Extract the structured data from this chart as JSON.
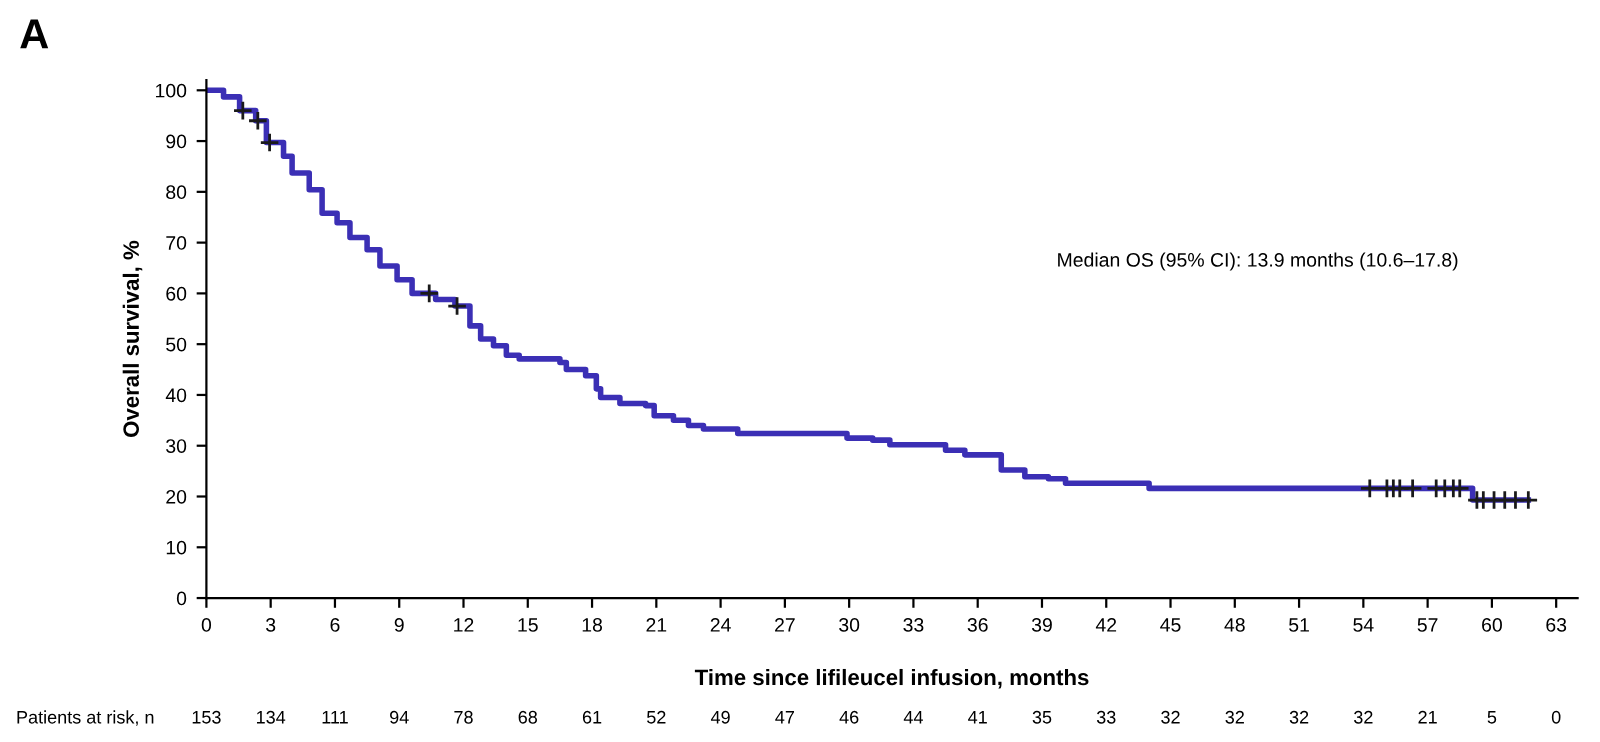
{
  "chart_data": {
    "type": "step",
    "title": "A",
    "xlabel": "Time since lifileucel infusion, months",
    "ylabel": "Overall survival, %",
    "xlim": [
      0,
      64
    ],
    "xticks": [
      0,
      3,
      6,
      9,
      12,
      15,
      18,
      21,
      24,
      27,
      30,
      33,
      36,
      39,
      42,
      45,
      48,
      51,
      54,
      57,
      60,
      63
    ],
    "ylim": [
      0,
      102
    ],
    "yticks": [
      0,
      10,
      20,
      30,
      40,
      50,
      60,
      70,
      80,
      90,
      100
    ],
    "grid": false,
    "legend": false,
    "annotations": [
      "Median OS (95% CI): 13.9 months (10.6–17.8)",
      "Patients at risk, n",
      "153",
      "134",
      "111",
      "94",
      "78",
      "68",
      "61",
      "52",
      "49",
      "47",
      "46",
      "44",
      "41",
      "35",
      "33",
      "32",
      "32",
      "32",
      "32",
      "21",
      "5",
      "0"
    ],
    "series": [
      {
        "color": "#3b2fb5",
        "marker": "none",
        "x": [
          0,
          0.8,
          1.55,
          2.3,
          2.8,
          3.6,
          4.0,
          4.8,
          5.4,
          6.1,
          6.7,
          7.5,
          8.1,
          8.9,
          9.6,
          10.7,
          11.6,
          12.3,
          12.8,
          13.4,
          14.0,
          14.6,
          16.5,
          16.8,
          17.7,
          18.2,
          18.4,
          19.3,
          20.5,
          20.9,
          21.8,
          22.5,
          23.2,
          24.8,
          29.9,
          31.1,
          31.9,
          34.5,
          35.4,
          37.1,
          38.2,
          39.3,
          40.1,
          44.0,
          59.1,
          61.7
        ],
        "values": [
          100,
          98.7,
          96,
          94,
          89.7,
          87,
          83.7,
          80.4,
          75.8,
          73.9,
          71,
          68.6,
          65.4,
          62.7,
          60,
          58.8,
          57.5,
          53.6,
          51,
          49.7,
          47.8,
          47.1,
          46.4,
          45,
          43.8,
          41.2,
          39.5,
          38.3,
          37.9,
          35.9,
          35,
          34,
          33.3,
          32.4,
          31.5,
          31.1,
          30.2,
          29.1,
          28.2,
          25.2,
          23.9,
          23.5,
          22.6,
          21.6,
          19.3,
          19.3
        ]
      },
      {
        "type": "scatter",
        "color": "#1a1a1a",
        "marker": "cross",
        "x": [
          1.7,
          2.4,
          2.95,
          10.4,
          11.7,
          54.3,
          55.1,
          55.4,
          55.7,
          56.3,
          57.4,
          57.8,
          58.2,
          58.5,
          59.3,
          59.6,
          60.1,
          60.6,
          61.1,
          61.7
        ],
        "values": [
          96,
          94,
          89.7,
          60,
          57.5,
          21.6,
          21.6,
          21.6,
          21.6,
          21.6,
          21.6,
          21.6,
          21.6,
          21.6,
          19.3,
          19.3,
          19.3,
          19.3,
          19.3,
          19.3
        ]
      }
    ]
  }
}
